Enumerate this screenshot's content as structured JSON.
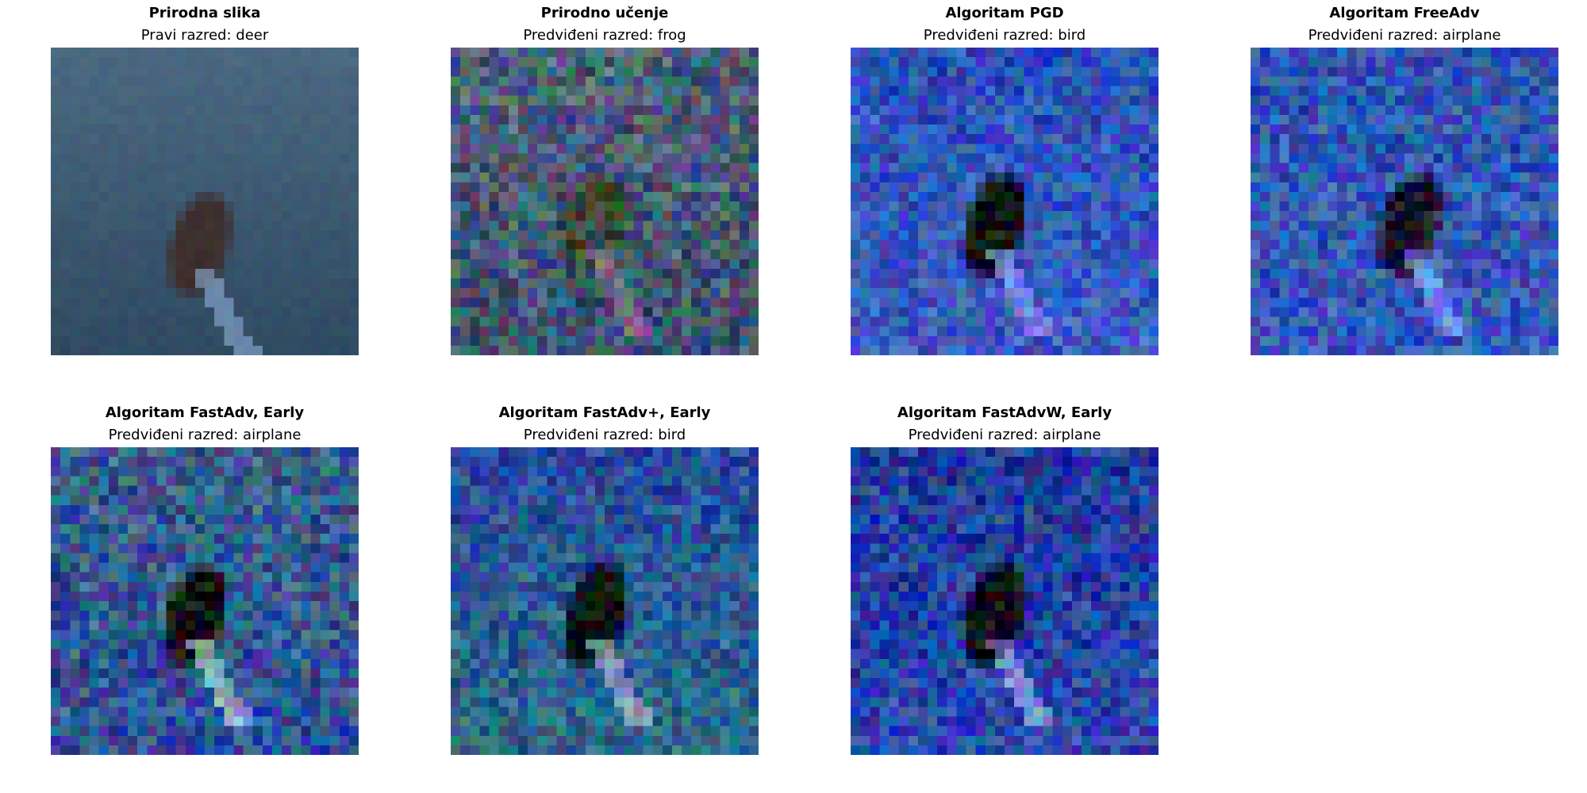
{
  "panels": [
    {
      "title": "Prirodna slika",
      "subtitle": "Pravi razred: deer",
      "image": {
        "style": "clean",
        "palette": {
          "bg_top": "#4a6880",
          "bg_bottom": "#2f4a62",
          "subject": "#3e2f2e",
          "highlight": "#8fb0d8"
        },
        "noise": 0.04
      }
    },
    {
      "title": "Prirodno učenje",
      "subtitle": "Predviđeni razred: frog",
      "image": {
        "style": "noisy",
        "palette": {
          "bg_top": "#4e6078",
          "bg_bottom": "#3d5370",
          "subject": "#3a4a36",
          "highlight": "#a07a9a"
        },
        "noise": 0.35
      }
    },
    {
      "title": "Algoritam PGD",
      "subtitle": "Predviđeni razred: bird",
      "image": {
        "style": "perturbed",
        "palette": {
          "bg_top": "#2a50b8",
          "bg_bottom": "#3b5cc0",
          "subject": "#0c0c12",
          "highlight": "#9ab0ff"
        },
        "noise": 0.28
      }
    },
    {
      "title": "Algoritam FreeAdv",
      "subtitle": "Predviđeni razred: airplane",
      "image": {
        "style": "perturbed",
        "palette": {
          "bg_top": "#2f56b0",
          "bg_bottom": "#3656b8",
          "subject": "#141424",
          "highlight": "#88a8ff"
        },
        "noise": 0.3
      }
    },
    {
      "title": "Algoritam FastAdv, Early",
      "subtitle": "Predviđeni razred: airplane",
      "image": {
        "style": "perturbed",
        "palette": {
          "bg_top": "#3a5f8a",
          "bg_bottom": "#2d4f9a",
          "subject": "#0e0e14",
          "highlight": "#b8e0d8"
        },
        "noise": 0.32
      }
    },
    {
      "title": "Algoritam FastAdv+, Early",
      "subtitle": "Predviđeni razred: bird",
      "image": {
        "style": "perturbed",
        "palette": {
          "bg_top": "#274a9e",
          "bg_bottom": "#2a6a86",
          "subject": "#0a0a10",
          "highlight": "#c0c8d8"
        },
        "noise": 0.27
      }
    },
    {
      "title": "Algoritam FastAdvW, Early",
      "subtitle": "Predviđeni razred: airplane",
      "image": {
        "style": "perturbed",
        "palette": {
          "bg_top": "#1e3a9a",
          "bg_bottom": "#2a48b0",
          "subject": "#0a0a12",
          "highlight": "#a8b8e8"
        },
        "noise": 0.3
      }
    }
  ]
}
